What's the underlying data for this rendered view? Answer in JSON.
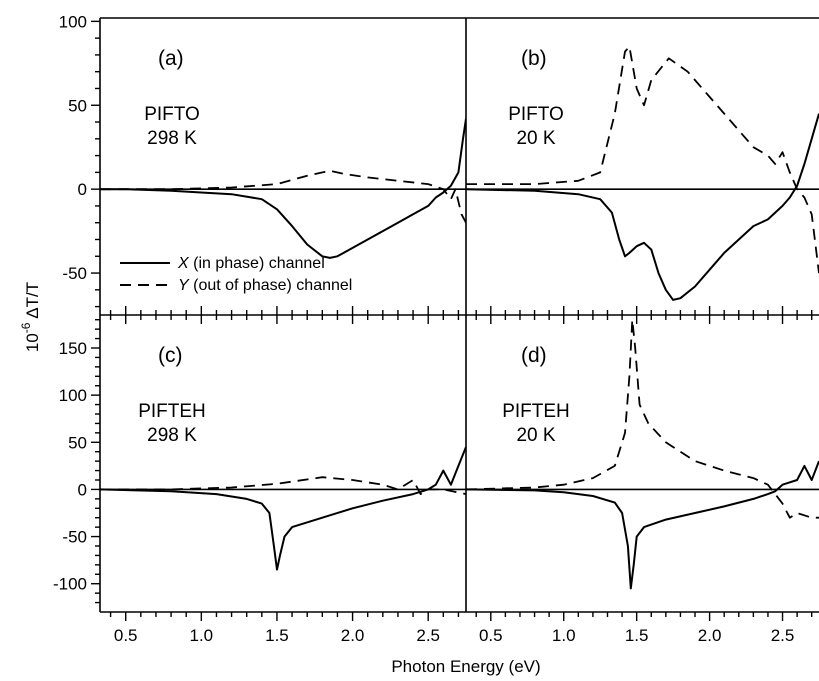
{
  "chart_data": {
    "type": "line",
    "layout": "2x2 panels sharing x axis per column; top row and bottom row have separate y axes",
    "xlabel": "Photon Energy (eV)",
    "ylabel_prefix": "10",
    "ylabel_exponent": "-6",
    "ylabel_suffix": " ΔT/T",
    "xlim": [
      0.33,
      2.75
    ],
    "x_ticks": [
      0.5,
      1.0,
      1.5,
      2.0,
      2.5
    ],
    "x_tick_labels": [
      "0.5",
      "1.0",
      "1.5",
      "2.0",
      "2.5"
    ],
    "top_row": {
      "ylim": [
        -75,
        102
      ],
      "y_ticks": [
        -50,
        0,
        50,
        100
      ],
      "y_tick_labels": [
        "-50",
        "0",
        "50",
        "100"
      ]
    },
    "bottom_row": {
      "ylim": [
        -130,
        185
      ],
      "y_ticks": [
        -100,
        -50,
        0,
        50,
        100,
        150
      ],
      "y_tick_labels": [
        "-100",
        "-50",
        "0",
        "50",
        "100",
        "150"
      ]
    },
    "legend": {
      "placement": "panel (a), lower-left",
      "entries": [
        {
          "style": "solid",
          "name_italic": "X",
          "name_rest": " (in phase) channel"
        },
        {
          "style": "dashed",
          "name_italic": "Y",
          "name_rest": " (out of phase) channel"
        }
      ]
    },
    "panels": [
      {
        "tag": "(a)",
        "sample": "PIFTO",
        "temperature": "298 K",
        "row": "top",
        "col": 0,
        "series": [
          {
            "name": "X (in phase) channel",
            "style": "solid",
            "points": [
              [
                0.33,
                0
              ],
              [
                0.5,
                0
              ],
              [
                0.8,
                -1
              ],
              [
                1.0,
                -2
              ],
              [
                1.2,
                -3
              ],
              [
                1.4,
                -6
              ],
              [
                1.5,
                -12
              ],
              [
                1.6,
                -22
              ],
              [
                1.7,
                -33
              ],
              [
                1.8,
                -40
              ],
              [
                1.85,
                -41
              ],
              [
                1.9,
                -40
              ],
              [
                2.0,
                -35
              ],
              [
                2.1,
                -30
              ],
              [
                2.2,
                -25
              ],
              [
                2.3,
                -20
              ],
              [
                2.4,
                -15
              ],
              [
                2.5,
                -10
              ],
              [
                2.55,
                -5
              ],
              [
                2.6,
                -2
              ],
              [
                2.65,
                2
              ],
              [
                2.7,
                10
              ],
              [
                2.73,
                30
              ],
              [
                2.75,
                42
              ]
            ]
          },
          {
            "name": "Y (out of phase) channel",
            "style": "dashed",
            "points": [
              [
                0.33,
                0
              ],
              [
                0.8,
                0
              ],
              [
                1.2,
                1
              ],
              [
                1.5,
                3
              ],
              [
                1.7,
                8
              ],
              [
                1.85,
                11
              ],
              [
                1.95,
                9
              ],
              [
                2.1,
                7
              ],
              [
                2.3,
                5
              ],
              [
                2.5,
                3
              ],
              [
                2.6,
                0
              ],
              [
                2.65,
                -6
              ],
              [
                2.68,
                0
              ],
              [
                2.72,
                -15
              ],
              [
                2.75,
                -20
              ]
            ]
          }
        ]
      },
      {
        "tag": "(b)",
        "sample": "PIFTO",
        "temperature": "20 K",
        "row": "top",
        "col": 1,
        "series": [
          {
            "name": "X (in phase) channel",
            "style": "solid",
            "points": [
              [
                0.33,
                0
              ],
              [
                0.8,
                -1
              ],
              [
                1.1,
                -3
              ],
              [
                1.25,
                -6
              ],
              [
                1.33,
                -14
              ],
              [
                1.38,
                -30
              ],
              [
                1.42,
                -40
              ],
              [
                1.45,
                -38
              ],
              [
                1.5,
                -34
              ],
              [
                1.55,
                -32
              ],
              [
                1.6,
                -36
              ],
              [
                1.65,
                -50
              ],
              [
                1.7,
                -60
              ],
              [
                1.75,
                -66
              ],
              [
                1.8,
                -65
              ],
              [
                1.9,
                -58
              ],
              [
                2.0,
                -48
              ],
              [
                2.1,
                -38
              ],
              [
                2.2,
                -30
              ],
              [
                2.3,
                -22
              ],
              [
                2.4,
                -18
              ],
              [
                2.5,
                -10
              ],
              [
                2.55,
                -5
              ],
              [
                2.6,
                2
              ],
              [
                2.65,
                15
              ],
              [
                2.7,
                30
              ],
              [
                2.75,
                45
              ]
            ]
          },
          {
            "name": "Y (out of phase) channel",
            "style": "dashed",
            "points": [
              [
                0.33,
                3
              ],
              [
                0.8,
                3
              ],
              [
                1.1,
                5
              ],
              [
                1.25,
                10
              ],
              [
                1.35,
                45
              ],
              [
                1.42,
                82
              ],
              [
                1.45,
                85
              ],
              [
                1.5,
                60
              ],
              [
                1.55,
                50
              ],
              [
                1.6,
                65
              ],
              [
                1.72,
                78
              ],
              [
                1.85,
                70
              ],
              [
                2.0,
                55
              ],
              [
                2.1,
                45
              ],
              [
                2.2,
                35
              ],
              [
                2.3,
                25
              ],
              [
                2.4,
                20
              ],
              [
                2.45,
                15
              ],
              [
                2.5,
                22
              ],
              [
                2.55,
                10
              ],
              [
                2.6,
                0
              ],
              [
                2.65,
                -5
              ],
              [
                2.7,
                -15
              ],
              [
                2.75,
                -50
              ]
            ]
          }
        ]
      },
      {
        "tag": "(c)",
        "sample": "PIFTEH",
        "temperature": "298 K",
        "row": "bottom",
        "col": 0,
        "series": [
          {
            "name": "X (in phase) channel",
            "style": "solid",
            "points": [
              [
                0.33,
                0
              ],
              [
                0.8,
                -2
              ],
              [
                1.1,
                -5
              ],
              [
                1.3,
                -10
              ],
              [
                1.4,
                -15
              ],
              [
                1.45,
                -25
              ],
              [
                1.48,
                -60
              ],
              [
                1.5,
                -85
              ],
              [
                1.52,
                -70
              ],
              [
                1.55,
                -50
              ],
              [
                1.6,
                -40
              ],
              [
                1.8,
                -30
              ],
              [
                2.0,
                -20
              ],
              [
                2.2,
                -12
              ],
              [
                2.4,
                -5
              ],
              [
                2.5,
                0
              ],
              [
                2.55,
                5
              ],
              [
                2.6,
                20
              ],
              [
                2.65,
                5
              ],
              [
                2.7,
                25
              ],
              [
                2.75,
                45
              ]
            ]
          },
          {
            "name": "Y (out of phase) channel",
            "style": "dashed",
            "points": [
              [
                0.33,
                0
              ],
              [
                0.8,
                0
              ],
              [
                1.2,
                2
              ],
              [
                1.5,
                6
              ],
              [
                1.8,
                13
              ],
              [
                2.0,
                10
              ],
              [
                2.2,
                5
              ],
              [
                2.3,
                0
              ],
              [
                2.4,
                10
              ],
              [
                2.45,
                -5
              ],
              [
                2.5,
                0
              ],
              [
                2.6,
                0
              ],
              [
                2.75,
                -5
              ]
            ]
          }
        ]
      },
      {
        "tag": "(d)",
        "sample": "PIFTEH",
        "temperature": "20 K",
        "row": "bottom",
        "col": 1,
        "series": [
          {
            "name": "X (in phase) channel",
            "style": "solid",
            "points": [
              [
                0.33,
                0
              ],
              [
                0.8,
                -1
              ],
              [
                1.0,
                -3
              ],
              [
                1.2,
                -7
              ],
              [
                1.35,
                -14
              ],
              [
                1.4,
                -25
              ],
              [
                1.44,
                -60
              ],
              [
                1.46,
                -105
              ],
              [
                1.48,
                -80
              ],
              [
                1.5,
                -50
              ],
              [
                1.55,
                -40
              ],
              [
                1.7,
                -32
              ],
              [
                1.9,
                -25
              ],
              [
                2.1,
                -18
              ],
              [
                2.3,
                -10
              ],
              [
                2.4,
                -5
              ],
              [
                2.45,
                -2
              ],
              [
                2.5,
                5
              ],
              [
                2.6,
                10
              ],
              [
                2.65,
                25
              ],
              [
                2.7,
                10
              ],
              [
                2.75,
                30
              ]
            ]
          },
          {
            "name": "Y (out of phase) channel",
            "style": "dashed",
            "points": [
              [
                0.33,
                0
              ],
              [
                0.8,
                2
              ],
              [
                1.0,
                5
              ],
              [
                1.2,
                12
              ],
              [
                1.35,
                25
              ],
              [
                1.42,
                60
              ],
              [
                1.45,
                120
              ],
              [
                1.47,
                180
              ],
              [
                1.49,
                150
              ],
              [
                1.52,
                90
              ],
              [
                1.58,
                70
              ],
              [
                1.7,
                50
              ],
              [
                1.9,
                30
              ],
              [
                2.1,
                20
              ],
              [
                2.3,
                12
              ],
              [
                2.4,
                5
              ],
              [
                2.45,
                -5
              ],
              [
                2.5,
                -15
              ],
              [
                2.55,
                -30
              ],
              [
                2.6,
                -25
              ],
              [
                2.7,
                -30
              ],
              [
                2.75,
                -30
              ]
            ]
          }
        ]
      }
    ]
  }
}
